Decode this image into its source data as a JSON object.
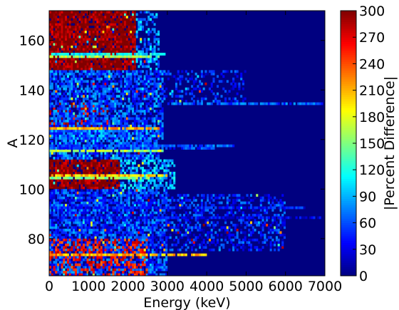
{
  "chart_data": {
    "type": "heatmap",
    "title": "",
    "xlabel": "Energy (keV)",
    "ylabel": "A",
    "colorbar_label": "|Percent Difference|",
    "colormap": "jet",
    "xlim": [
      0,
      7000
    ],
    "ylim": [
      65,
      172
    ],
    "clim": [
      0,
      300
    ],
    "x_ticks": [
      0,
      1000,
      2000,
      3000,
      4000,
      5000,
      6000,
      7000
    ],
    "x_tick_labels": [
      "0",
      "1000",
      "2000",
      "3000",
      "4000",
      "5000",
      "6000",
      "7000"
    ],
    "y_ticks": [
      80,
      100,
      120,
      140,
      160
    ],
    "y_tick_labels": [
      "80",
      "100",
      "120",
      "140",
      "160"
    ],
    "colorbar_ticks": [
      0,
      30,
      60,
      90,
      120,
      150,
      180,
      210,
      240,
      270,
      300
    ],
    "colorbar_tick_labels": [
      "0",
      "30",
      "60",
      "90",
      "120",
      "150",
      "180",
      "210",
      "240",
      "270",
      "300"
    ],
    "background_value": 0,
    "bin_size_keV": 50,
    "regions": [
      {
        "A": [
          148,
          172
        ],
        "E": [
          0,
          2200
        ],
        "value": 300,
        "density": 0.9
      },
      {
        "A": [
          148,
          172
        ],
        "E": [
          2200,
          2800
        ],
        "value": 80,
        "density": 0.4
      },
      {
        "A": [
          100,
          112
        ],
        "E": [
          0,
          1800
        ],
        "value": 300,
        "density": 0.85
      },
      {
        "A": [
          100,
          112
        ],
        "E": [
          1800,
          3200
        ],
        "value": 90,
        "density": 0.6
      },
      {
        "A": [
          125,
          135
        ],
        "E": [
          0,
          1500
        ],
        "value": 280,
        "density": 0.5
      },
      {
        "A": [
          120,
          148
        ],
        "E": [
          0,
          2900
        ],
        "value": 60,
        "density": 0.7
      },
      {
        "A": [
          135,
          148
        ],
        "E": [
          2900,
          5000
        ],
        "value": 45,
        "density": 0.3
      },
      {
        "A": [
          112,
          125
        ],
        "E": [
          0,
          2800
        ],
        "value": 70,
        "density": 0.7
      },
      {
        "A": [
          65,
          100
        ],
        "E": [
          0,
          3000
        ],
        "value": 55,
        "density": 0.75
      },
      {
        "A": [
          75,
          98
        ],
        "E": [
          3000,
          6000
        ],
        "value": 45,
        "density": 0.45
      },
      {
        "A": [
          65,
          80
        ],
        "E": [
          0,
          2500
        ],
        "value": 260,
        "density": 0.35
      }
    ],
    "rows": [
      {
        "A": 153,
        "E": [
          0,
          2800
        ],
        "value": 160
      },
      {
        "A": 154,
        "E": [
          0,
          3000
        ],
        "value": 110
      },
      {
        "A": 105,
        "E": [
          0,
          3000
        ],
        "value": 200
      },
      {
        "A": 104,
        "E": [
          0,
          2600
        ],
        "value": 150
      },
      {
        "A": 115,
        "E": [
          0,
          2900
        ],
        "value": 165
      },
      {
        "A": 116,
        "E": [
          0,
          4200
        ],
        "value": 55
      },
      {
        "A": 117,
        "E": [
          0,
          4700
        ],
        "value": 60
      },
      {
        "A": 124,
        "E": [
          0,
          2800
        ],
        "value": 210
      },
      {
        "A": 134,
        "E": [
          3000,
          6950
        ],
        "value": 65
      },
      {
        "A": 73,
        "E": [
          0,
          4000
        ],
        "value": 210
      },
      {
        "A": 92,
        "E": [
          0,
          6500
        ],
        "value": 40
      },
      {
        "A": 88,
        "E": [
          0,
          6900
        ],
        "value": 35
      }
    ]
  }
}
